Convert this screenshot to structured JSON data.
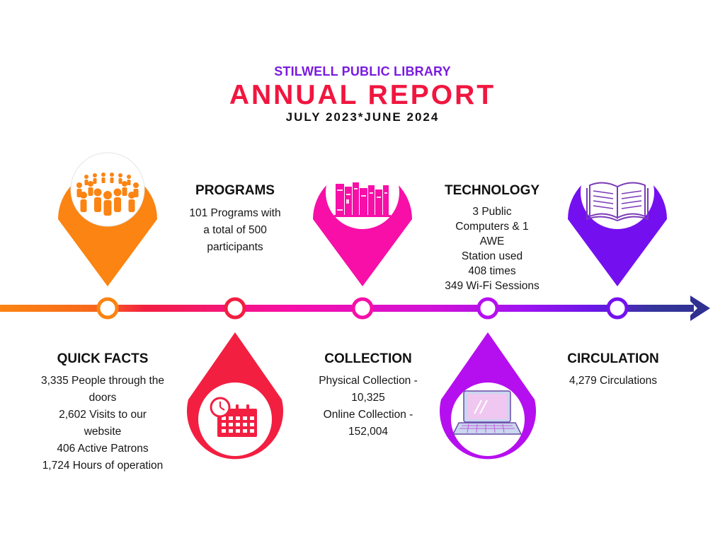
{
  "header": {
    "org": "STILWELL PUBLIC LIBRARY",
    "title": "ANNUAL REPORT",
    "dates": "JULY 2023*JUNE 2024"
  },
  "colors": {
    "orange": "#fb8412",
    "red": "#f21f41",
    "magenta": "#f70fa8",
    "purple": "#b60fef",
    "violet": "#7410f0",
    "navy": "#34359a",
    "org_text": "#7a1be0",
    "title_text": "#f0163f"
  },
  "sections": {
    "quick_facts": {
      "title": "QUICK FACTS",
      "lines": [
        "3,335 People through the",
        "doors",
        "2,602 Visits to our",
        "website",
        "406 Active Patrons",
        "1,724 Hours of operation"
      ]
    },
    "programs": {
      "title": "PROGRAMS",
      "lines": [
        "101 Programs with",
        "a total of 500",
        "participants"
      ]
    },
    "collection": {
      "title": "COLLECTION",
      "lines": [
        "Physical Collection -",
        "10,325",
        "Online Collection -",
        "152,004"
      ]
    },
    "technology": {
      "title": "TECHNOLOGY",
      "lines": [
        "3 Public",
        "Computers & 1",
        "AWE",
        "Station used",
        "408 times",
        "349 Wi-Fi Sessions"
      ]
    },
    "circulation": {
      "title": "CIRCULATION",
      "lines": [
        "4,279 Circulations"
      ]
    }
  },
  "icons": {
    "quick_facts": "people-crowd-icon",
    "programs": "calendar-clock-icon",
    "collection": "books-shelf-icon",
    "technology": "laptop-icon",
    "circulation": "open-book-icon"
  }
}
